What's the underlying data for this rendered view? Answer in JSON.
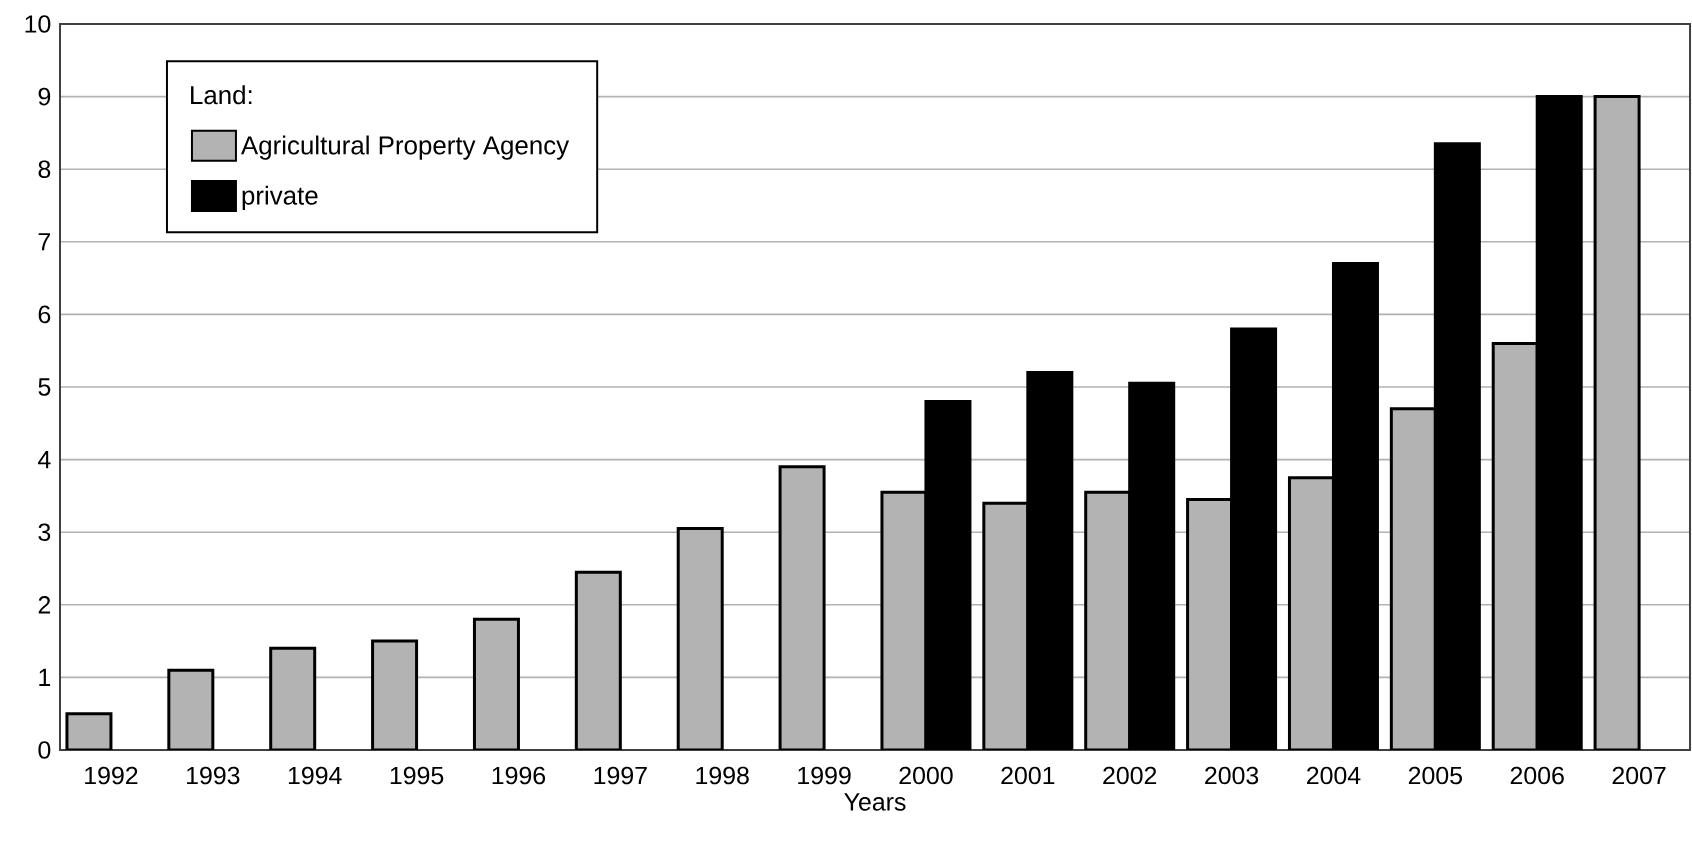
{
  "chart_data": {
    "type": "bar",
    "xlabel": "Years",
    "legend_title": "Land:",
    "categories": [
      "1992",
      "1993",
      "1994",
      "1995",
      "1996",
      "1997",
      "1998",
      "1999",
      "2000",
      "2001",
      "2002",
      "2003",
      "2004",
      "2005",
      "2006",
      "2007"
    ],
    "series": [
      {
        "name": "Agricultural Property Agency",
        "color": "#b3b3b3",
        "values": [
          0.5,
          1.1,
          1.4,
          1.5,
          1.8,
          2.45,
          3.05,
          3.9,
          3.55,
          3.4,
          3.55,
          3.45,
          3.75,
          4.7,
          5.6,
          9.0
        ]
      },
      {
        "name": "private",
        "color": "#000000",
        "values": [
          null,
          null,
          null,
          null,
          null,
          null,
          null,
          null,
          4.8,
          5.2,
          5.05,
          5.8,
          6.7,
          8.35,
          9.0,
          null
        ]
      }
    ],
    "ylim": [
      0,
      10
    ],
    "yticks": [
      0,
      1,
      2,
      3,
      4,
      5,
      6,
      7,
      8,
      9,
      10
    ],
    "grid": "y",
    "legend": "top left"
  }
}
